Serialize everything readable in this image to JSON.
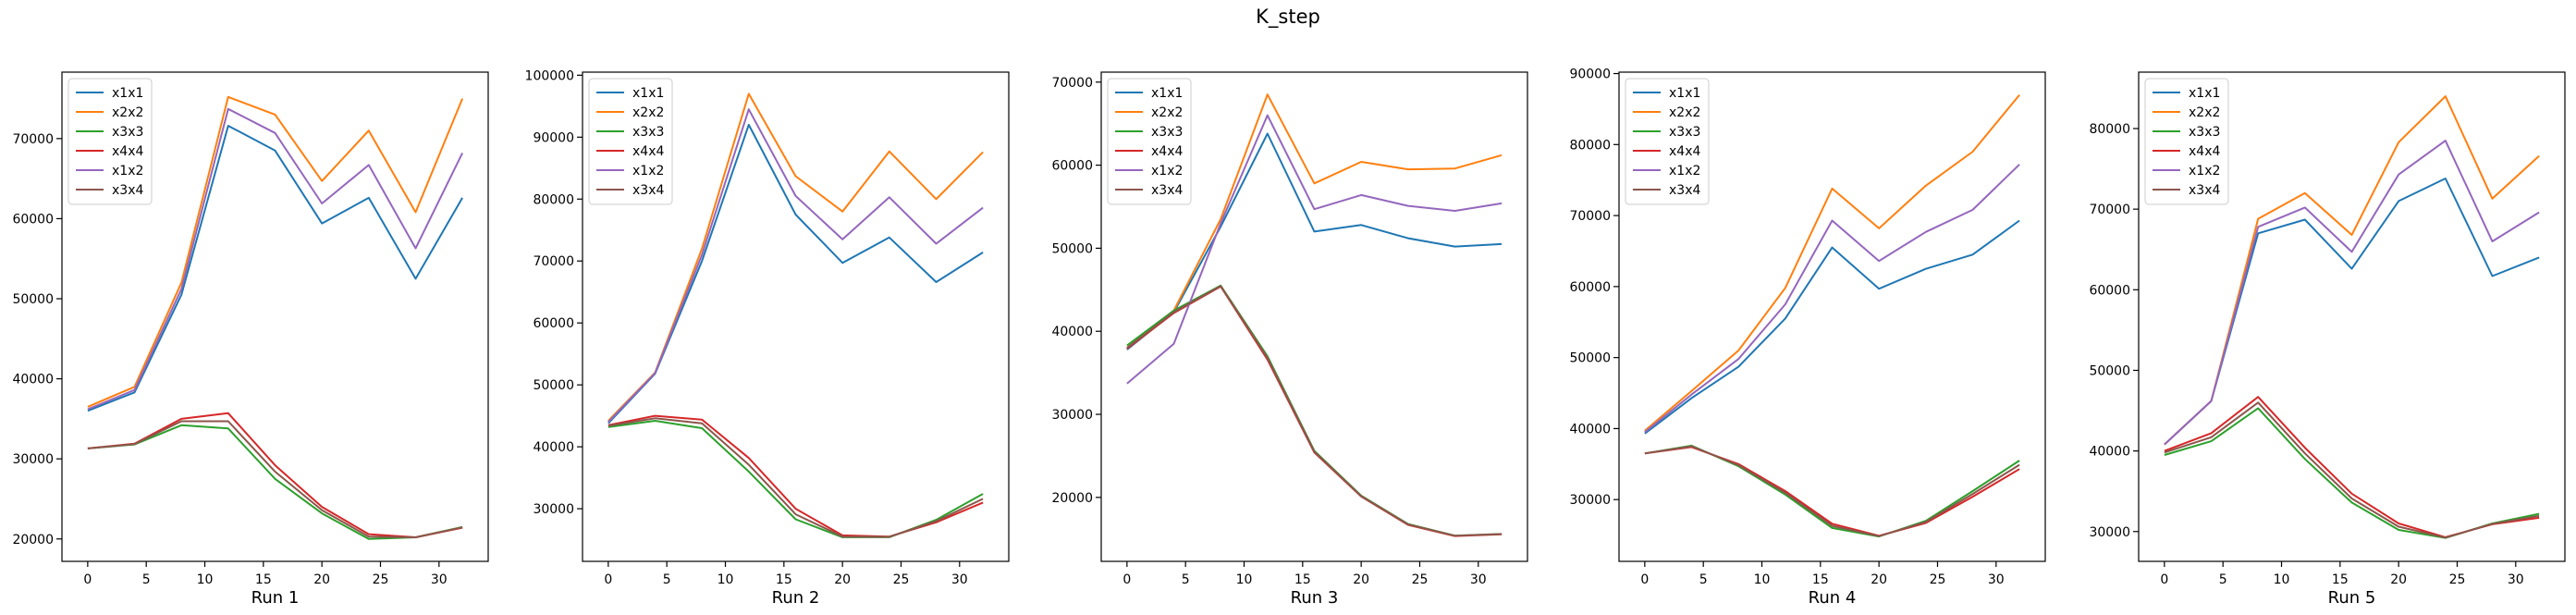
{
  "figure": {
    "title": "K_step"
  },
  "colors": {
    "x1x1": "#1f77b4",
    "x2x2": "#ff7f0e",
    "x3x3": "#2ca02c",
    "x4x4": "#d62728",
    "x1x2": "#9467bd",
    "x3x4": "#8c564b"
  },
  "chart_data": [
    {
      "type": "line",
      "xlabel": "Run 1",
      "ylabel": "",
      "title": "",
      "x": [
        0,
        4,
        8,
        12,
        16,
        20,
        24,
        28,
        32
      ],
      "xlim": [
        -2.2,
        34.2
      ],
      "ylim": [
        17200,
        78300
      ],
      "xticks": [
        0,
        5,
        10,
        15,
        20,
        25,
        30
      ],
      "yticks": [
        20000,
        30000,
        40000,
        50000,
        60000,
        70000
      ],
      "legend": "top-left",
      "series": [
        {
          "name": "x1x1",
          "values": [
            36000,
            38300,
            50500,
            71600,
            68500,
            59400,
            62600,
            52500,
            62600
          ]
        },
        {
          "name": "x2x2",
          "values": [
            36500,
            39000,
            52000,
            75200,
            73000,
            64700,
            71000,
            60800,
            75000
          ]
        },
        {
          "name": "x3x3",
          "values": [
            31300,
            31800,
            34200,
            33800,
            27500,
            23200,
            20000,
            20200,
            21500
          ]
        },
        {
          "name": "x4x4",
          "values": [
            31300,
            31900,
            35000,
            35700,
            29200,
            24000,
            20600,
            20200,
            21400
          ]
        },
        {
          "name": "x1x2",
          "values": [
            36200,
            38600,
            51200,
            73700,
            70700,
            61900,
            66700,
            56300,
            68200
          ]
        },
        {
          "name": "x3x4",
          "values": [
            31300,
            31850,
            34700,
            34700,
            28400,
            23600,
            20300,
            20200,
            21450
          ]
        }
      ]
    },
    {
      "type": "line",
      "xlabel": "Run 2",
      "ylabel": "",
      "title": "",
      "x": [
        0,
        4,
        8,
        12,
        16,
        20,
        24,
        28,
        32
      ],
      "xlim": [
        -2.2,
        34.2
      ],
      "ylim": [
        21500,
        100500
      ],
      "xticks": [
        0,
        5,
        10,
        15,
        20,
        25,
        30
      ],
      "yticks": [
        30000,
        40000,
        50000,
        60000,
        70000,
        80000,
        90000,
        100000
      ],
      "legend": "top-left",
      "series": [
        {
          "name": "x1x1",
          "values": [
            43800,
            51800,
            70000,
            92000,
            77500,
            69700,
            73800,
            66600,
            71400
          ]
        },
        {
          "name": "x2x2",
          "values": [
            44200,
            52000,
            72000,
            97000,
            83700,
            78000,
            87700,
            80000,
            87600
          ]
        },
        {
          "name": "x3x3",
          "values": [
            43200,
            44200,
            43000,
            36000,
            28300,
            25400,
            25400,
            28200,
            32400
          ]
        },
        {
          "name": "x4x4",
          "values": [
            43500,
            45000,
            44400,
            38200,
            30000,
            25700,
            25500,
            27800,
            31000
          ]
        },
        {
          "name": "x1x2",
          "values": [
            44000,
            51900,
            71000,
            94500,
            80500,
            73500,
            80300,
            72800,
            78600
          ]
        },
        {
          "name": "x3x4",
          "values": [
            43400,
            44600,
            43800,
            37100,
            29100,
            25500,
            25450,
            28000,
            31600
          ]
        }
      ]
    },
    {
      "type": "line",
      "xlabel": "Run 3",
      "ylabel": "",
      "title": "",
      "x": [
        0,
        4,
        8,
        12,
        16,
        20,
        24,
        28,
        32
      ],
      "xlim": [
        -2.2,
        34.2
      ],
      "ylim": [
        12300,
        71200
      ],
      "xticks": [
        0,
        5,
        10,
        15,
        20,
        25,
        30
      ],
      "yticks": [
        20000,
        30000,
        40000,
        50000,
        60000,
        70000
      ],
      "legend": "top-left",
      "series": [
        {
          "name": "x1x1",
          "values": [
            37800,
            42300,
            52600,
            63800,
            52000,
            52800,
            51200,
            50200,
            50500
          ]
        },
        {
          "name": "x2x2",
          "values": [
            38000,
            42500,
            53500,
            68500,
            57800,
            60400,
            59500,
            59600,
            61200
          ]
        },
        {
          "name": "x3x3",
          "values": [
            38300,
            42500,
            45500,
            37000,
            25600,
            20200,
            16800,
            15400,
            15600
          ]
        },
        {
          "name": "x4x4",
          "values": [
            37900,
            42200,
            45400,
            36600,
            25400,
            20100,
            16700,
            15350,
            15550
          ]
        },
        {
          "name": "x1x2",
          "values": [
            33700,
            38500,
            53000,
            66000,
            54700,
            56400,
            55100,
            54500,
            55400
          ]
        },
        {
          "name": "x3x4",
          "values": [
            38000,
            42300,
            45450,
            36800,
            25500,
            20150,
            16750,
            15380,
            15580
          ]
        }
      ]
    },
    {
      "type": "line",
      "xlabel": "Run 4",
      "ylabel": "",
      "title": "",
      "x": [
        0,
        4,
        8,
        12,
        16,
        20,
        24,
        28,
        32
      ],
      "xlim": [
        -2.2,
        34.2
      ],
      "ylim": [
        21300,
        90200
      ],
      "xticks": [
        0,
        5,
        10,
        15,
        20,
        25,
        30
      ],
      "yticks": [
        30000,
        40000,
        50000,
        60000,
        70000,
        80000,
        90000
      ],
      "legend": "top-left",
      "series": [
        {
          "name": "x1x1",
          "values": [
            39300,
            44300,
            48700,
            55500,
            65500,
            59700,
            62500,
            64500,
            69300
          ]
        },
        {
          "name": "x2x2",
          "values": [
            39700,
            45300,
            51000,
            59800,
            73800,
            68200,
            74200,
            79000,
            87000
          ]
        },
        {
          "name": "x3x3",
          "values": [
            36500,
            37600,
            34700,
            30700,
            26000,
            24800,
            27000,
            31200,
            35500
          ]
        },
        {
          "name": "x4x4",
          "values": [
            36500,
            37400,
            35000,
            31200,
            26600,
            24900,
            26700,
            30400,
            34300
          ]
        },
        {
          "name": "x1x2",
          "values": [
            39500,
            44800,
            49800,
            57500,
            69300,
            63600,
            67700,
            70800,
            77200
          ]
        },
        {
          "name": "x3x4",
          "values": [
            36500,
            37500,
            34850,
            30950,
            26300,
            24850,
            26850,
            30800,
            34900
          ]
        }
      ]
    },
    {
      "type": "line",
      "xlabel": "Run 5",
      "ylabel": "",
      "title": "",
      "x": [
        0,
        4,
        8,
        12,
        16,
        20,
        24,
        28,
        32
      ],
      "xlim": [
        -2.2,
        34.2
      ],
      "ylim": [
        26300,
        87000
      ],
      "xticks": [
        0,
        5,
        10,
        15,
        20,
        25,
        30
      ],
      "yticks": [
        30000,
        40000,
        50000,
        60000,
        70000,
        80000
      ],
      "legend": "top-left",
      "series": [
        {
          "name": "x1x1",
          "values": [
            40800,
            46200,
            67000,
            68700,
            62600,
            71000,
            73800,
            61700,
            64000
          ]
        },
        {
          "name": "x2x2",
          "values": [
            40800,
            46200,
            68800,
            72000,
            66800,
            78300,
            84000,
            71300,
            76600
          ]
        },
        {
          "name": "x3x3",
          "values": [
            39500,
            41200,
            45300,
            39000,
            33600,
            30200,
            29200,
            31000,
            32200
          ]
        },
        {
          "name": "x4x4",
          "values": [
            40000,
            42200,
            46700,
            40400,
            34700,
            31000,
            29300,
            30900,
            31700
          ]
        },
        {
          "name": "x1x2",
          "values": [
            40800,
            46200,
            67800,
            70200,
            64700,
            74300,
            78500,
            66000,
            69600
          ]
        },
        {
          "name": "x3x4",
          "values": [
            39800,
            41700,
            46000,
            39700,
            34100,
            30600,
            29250,
            30950,
            31950
          ]
        }
      ]
    }
  ]
}
